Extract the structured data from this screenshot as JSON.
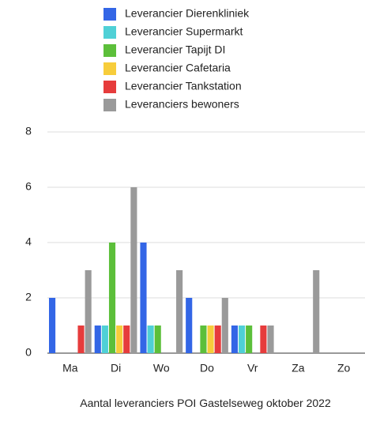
{
  "chart_data": {
    "type": "bar",
    "title": "Aantal leveranciers POI Gastelseweg oktober 2022",
    "categories": [
      "Ma",
      "Di",
      "Wo",
      "Do",
      "Vr",
      "Za",
      "Zo"
    ],
    "series": [
      {
        "name": "Leverancier Dierenkliniek",
        "color": "#3366e6",
        "values": [
          2,
          1,
          4,
          2,
          1,
          0,
          0
        ]
      },
      {
        "name": "Leverancier Supermarkt",
        "color": "#4fd0d6",
        "values": [
          0,
          1,
          1,
          0,
          1,
          0,
          0
        ]
      },
      {
        "name": "Leverancier Tapijt DI",
        "color": "#5cbf3a",
        "values": [
          0,
          4,
          1,
          1,
          1,
          0,
          0
        ]
      },
      {
        "name": "Leverancier Cafetaria",
        "color": "#f7cd3b",
        "values": [
          0,
          1,
          0,
          1,
          0,
          0,
          0
        ]
      },
      {
        "name": "Leverancier Tankstation",
        "color": "#e63c3c",
        "values": [
          1,
          1,
          0,
          1,
          1,
          0,
          0
        ]
      },
      {
        "name": "Leveranciers bewoners",
        "color": "#9a9a9a",
        "values": [
          3,
          6,
          3,
          2,
          1,
          3,
          0
        ]
      }
    ],
    "ylim": [
      0,
      8
    ],
    "yticks": [
      0,
      2,
      4,
      6,
      8
    ],
    "grid": true,
    "legend": "top"
  }
}
